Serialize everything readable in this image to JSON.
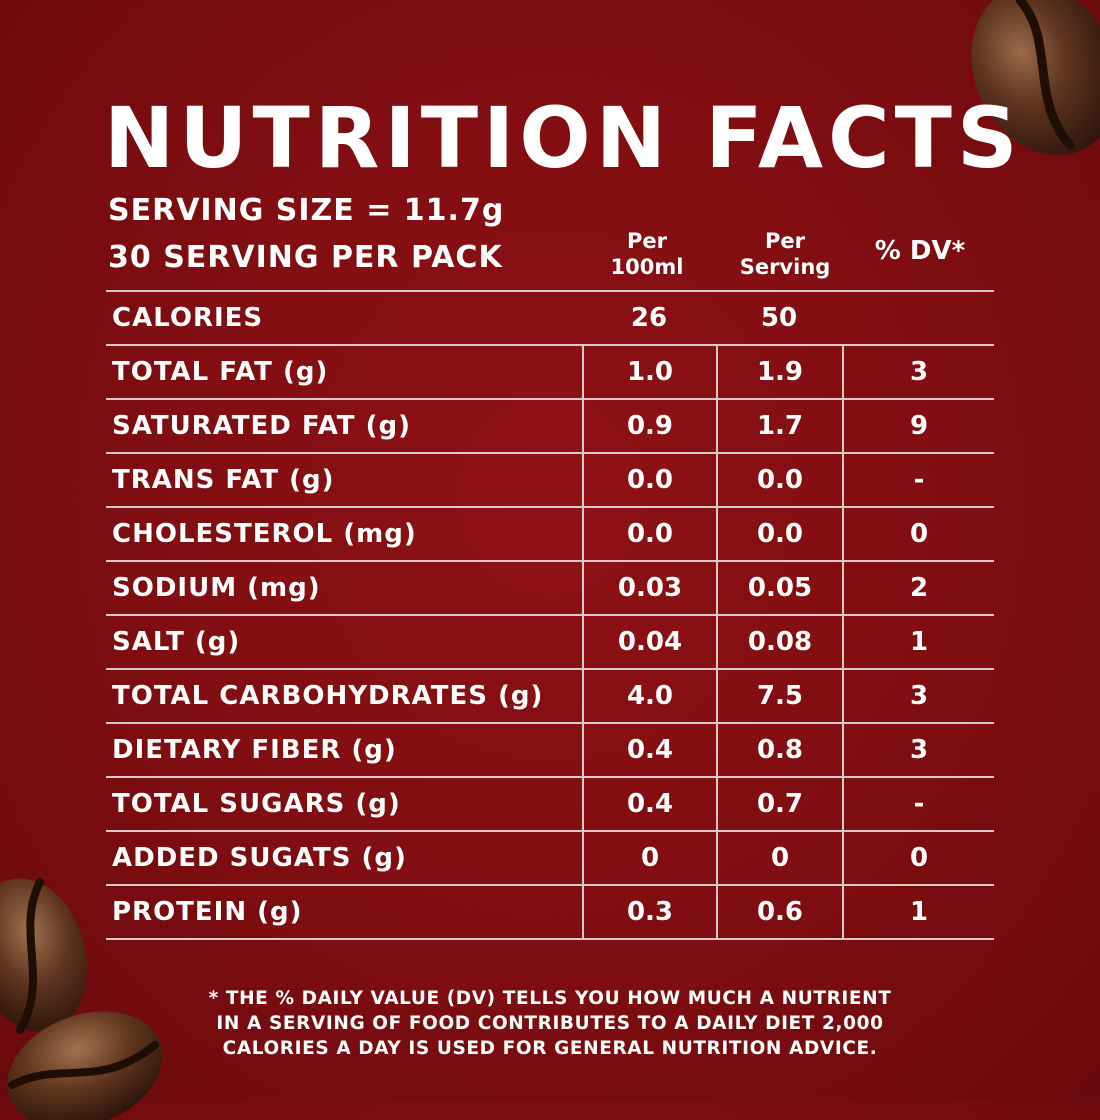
{
  "title": "NUTRITION FACTS",
  "serving_size": "SERVING SIZE = 11.7g",
  "servings_per_pack": "30 SERVING PER PACK",
  "columns": {
    "per_100ml_line1": "Per",
    "per_100ml_line2": "100ml",
    "per_serving_line1": "Per",
    "per_serving_line2": "Serving",
    "dv": "% DV*"
  },
  "rows": [
    {
      "name": "CALORIES",
      "per_100ml": "26",
      "per_serving": "50",
      "dv": ""
    },
    {
      "name": "TOTAL FAT (g)",
      "per_100ml": "1.0",
      "per_serving": "1.9",
      "dv": "3"
    },
    {
      "name": "SATURATED FAT (g)",
      "per_100ml": "0.9",
      "per_serving": "1.7",
      "dv": "9"
    },
    {
      "name": "TRANS FAT (g)",
      "per_100ml": "0.0",
      "per_serving": "0.0",
      "dv": "-"
    },
    {
      "name": "CHOLESTEROL (mg)",
      "per_100ml": "0.0",
      "per_serving": "0.0",
      "dv": "0"
    },
    {
      "name": "SODIUM (mg)",
      "per_100ml": "0.03",
      "per_serving": "0.05",
      "dv": "2"
    },
    {
      "name": "SALT (g)",
      "per_100ml": "0.04",
      "per_serving": "0.08",
      "dv": "1"
    },
    {
      "name": "TOTAL CARBOHYDRATES (g)",
      "per_100ml": "4.0",
      "per_serving": "7.5",
      "dv": "3"
    },
    {
      "name": "DIETARY FIBER (g)",
      "per_100ml": "0.4",
      "per_serving": "0.8",
      "dv": "3"
    },
    {
      "name": "TOTAL SUGARS (g)",
      "per_100ml": "0.4",
      "per_serving": "0.7",
      "dv": "-"
    },
    {
      "name": "ADDED SUGATS (g)",
      "per_100ml": "0",
      "per_serving": "0",
      "dv": "0"
    },
    {
      "name": "PROTEIN (g)",
      "per_100ml": "0.3",
      "per_serving": "0.6",
      "dv": "1"
    }
  ],
  "footnote": {
    "line1": "* THE % DAILY VALUE (DV) TELLS YOU HOW MUCH A NUTRIENT",
    "line2": "IN A SERVING OF FOOD CONTRIBUTES TO A DAILY DIET 2,000",
    "line3": "CALORIES A DAY IS USED FOR GENERAL NUTRITION ADVICE."
  },
  "colors": {
    "background": "#7e0d11",
    "text": "#ffffff",
    "rule": "#d9c9c9",
    "bean": "#5a2f1a"
  },
  "decorations": [
    "coffee-bean-icon",
    "coffee-bean-icon",
    "coffee-bean-icon"
  ]
}
